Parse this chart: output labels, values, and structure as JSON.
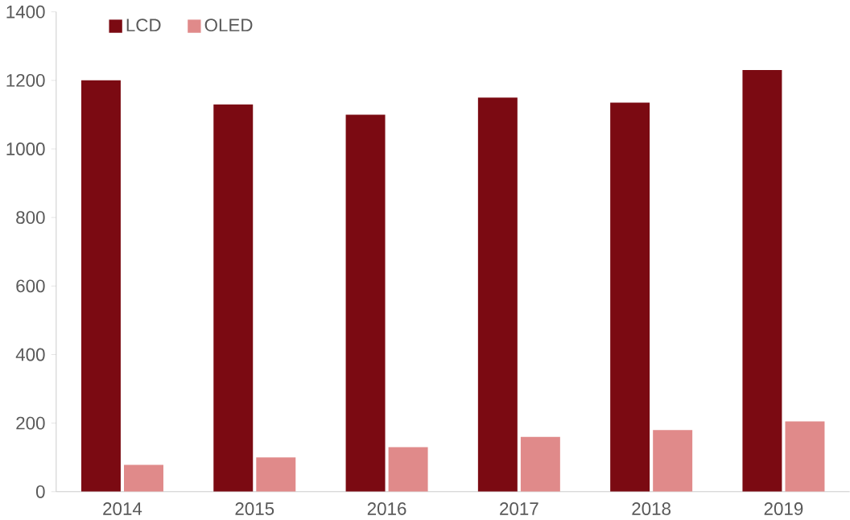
{
  "chart_data": {
    "type": "bar",
    "categories": [
      "2014",
      "2015",
      "2016",
      "2017",
      "2018",
      "2019"
    ],
    "series": [
      {
        "name": "LCD",
        "color": "#7b0a12",
        "values": [
          1200,
          1130,
          1100,
          1150,
          1135,
          1230
        ]
      },
      {
        "name": "OLED",
        "color": "#e08a8a",
        "values": [
          78,
          100,
          130,
          160,
          180,
          205
        ]
      }
    ],
    "ylim": [
      0,
      1400
    ],
    "yticks": [
      0,
      200,
      400,
      600,
      800,
      1000,
      1200,
      1400
    ],
    "legend": "top left",
    "grid": false
  }
}
